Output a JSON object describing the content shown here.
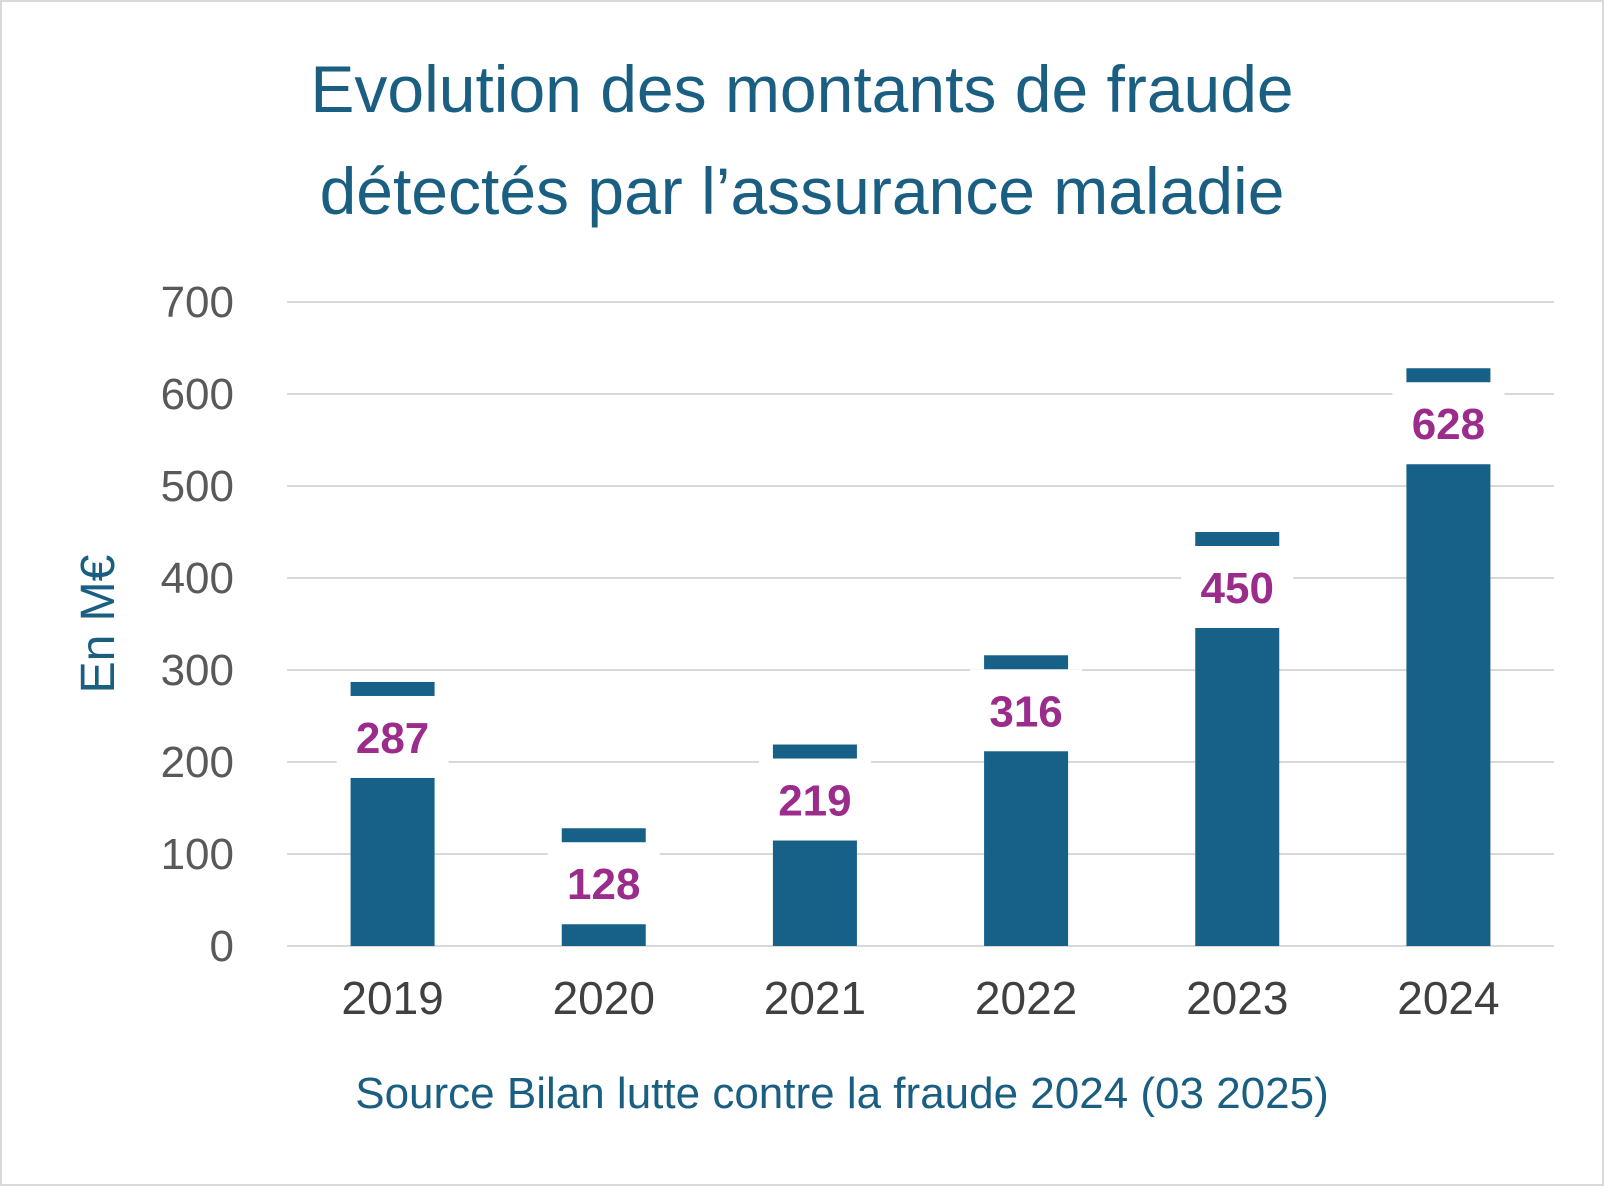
{
  "chart_data": {
    "type": "bar",
    "title_lines": [
      "Evolution des montants de fraude",
      "détectés par l’assurance maladie"
    ],
    "ylabel": "En M€",
    "xlabel": "Source Bilan lutte contre la fraude 2024 (03 2025)",
    "categories": [
      "2019",
      "2020",
      "2021",
      "2022",
      "2023",
      "2024"
    ],
    "values": [
      287,
      128,
      219,
      316,
      450,
      628
    ],
    "data_labels": [
      "287",
      "128",
      "219",
      "316",
      "450",
      "628"
    ],
    "ylim": [
      0,
      700
    ],
    "yticks": [
      "0",
      "100",
      "200",
      "300",
      "400",
      "500",
      "600",
      "700"
    ],
    "grid": true,
    "legend": "none",
    "colors": {
      "bar": "#176087",
      "label": "#9b2c8c",
      "title": "#1a5f82",
      "grid": "#d9d9d9"
    }
  }
}
